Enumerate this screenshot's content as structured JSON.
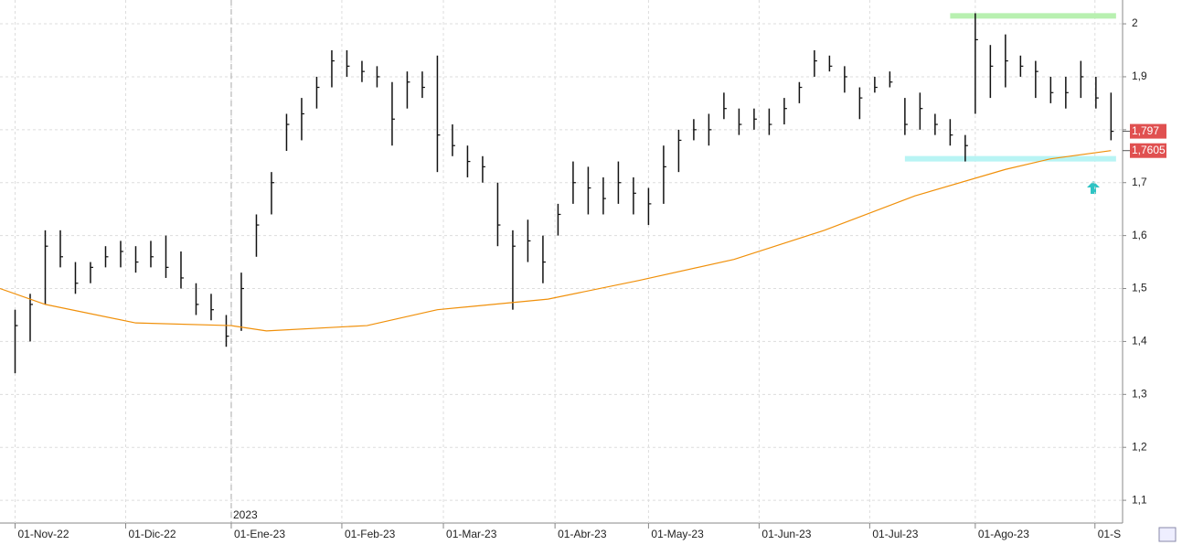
{
  "chart_data": {
    "type": "ohlc",
    "x": [
      0,
      3,
      6,
      9,
      12,
      15,
      18,
      21,
      24,
      27,
      30,
      33,
      36,
      39,
      42,
      45,
      48,
      51,
      54,
      57,
      60,
      63,
      66,
      69,
      72,
      75,
      78,
      81,
      84,
      87,
      90,
      93,
      96,
      99,
      102,
      105,
      108,
      111,
      114,
      117,
      120,
      123,
      126,
      129,
      132,
      135,
      138,
      141,
      144,
      147,
      150,
      153,
      156,
      159,
      162,
      165,
      168,
      171,
      174,
      177,
      180,
      183,
      186,
      189,
      191,
      194,
      197,
      200,
      203,
      206,
      209,
      212,
      215,
      218
    ],
    "high": [
      1.46,
      1.49,
      1.61,
      1.61,
      1.55,
      1.55,
      1.58,
      1.59,
      1.58,
      1.59,
      1.6,
      1.57,
      1.51,
      1.49,
      1.45,
      1.53,
      1.64,
      1.72,
      1.83,
      1.86,
      1.9,
      1.95,
      1.95,
      1.93,
      1.92,
      1.89,
      1.91,
      1.91,
      1.94,
      1.81,
      1.77,
      1.75,
      1.7,
      1.61,
      1.63,
      1.6,
      1.66,
      1.74,
      1.73,
      1.71,
      1.74,
      1.71,
      1.69,
      1.77,
      1.8,
      1.82,
      1.83,
      1.87,
      1.84,
      1.84,
      1.84,
      1.86,
      1.89,
      1.95,
      1.94,
      1.92,
      1.88,
      1.9,
      1.91,
      1.86,
      1.87,
      1.83,
      1.82,
      1.79,
      2.02,
      1.96,
      1.98,
      1.94,
      1.93,
      1.9,
      1.9,
      1.93,
      1.9,
      1.87
    ],
    "low": [
      1.34,
      1.4,
      1.47,
      1.54,
      1.49,
      1.51,
      1.54,
      1.54,
      1.53,
      1.54,
      1.52,
      1.5,
      1.45,
      1.44,
      1.39,
      1.42,
      1.56,
      1.64,
      1.76,
      1.78,
      1.84,
      1.88,
      1.9,
      1.89,
      1.88,
      1.77,
      1.84,
      1.86,
      1.72,
      1.75,
      1.71,
      1.7,
      1.58,
      1.46,
      1.55,
      1.51,
      1.6,
      1.66,
      1.64,
      1.64,
      1.66,
      1.64,
      1.62,
      1.66,
      1.72,
      1.78,
      1.77,
      1.82,
      1.79,
      1.8,
      1.79,
      1.81,
      1.85,
      1.9,
      1.91,
      1.87,
      1.82,
      1.87,
      1.88,
      1.79,
      1.8,
      1.79,
      1.77,
      1.74,
      1.83,
      1.86,
      1.88,
      1.9,
      1.86,
      1.85,
      1.84,
      1.86,
      1.84,
      1.78
    ],
    "close": [
      1.43,
      1.47,
      1.58,
      1.56,
      1.51,
      1.54,
      1.56,
      1.57,
      1.55,
      1.56,
      1.54,
      1.52,
      1.47,
      1.46,
      1.41,
      1.5,
      1.62,
      1.7,
      1.81,
      1.83,
      1.88,
      1.93,
      1.92,
      1.91,
      1.9,
      1.82,
      1.89,
      1.88,
      1.79,
      1.77,
      1.74,
      1.73,
      1.62,
      1.58,
      1.59,
      1.55,
      1.64,
      1.7,
      1.69,
      1.67,
      1.7,
      1.68,
      1.66,
      1.73,
      1.78,
      1.8,
      1.8,
      1.84,
      1.81,
      1.82,
      1.81,
      1.84,
      1.88,
      1.93,
      1.92,
      1.9,
      1.86,
      1.88,
      1.89,
      1.81,
      1.84,
      1.81,
      1.79,
      1.77,
      1.97,
      1.92,
      1.93,
      1.92,
      1.91,
      1.87,
      1.87,
      1.9,
      1.86,
      1.797
    ],
    "bar_color": "#111111",
    "moving_average": {
      "color": "#f0900a",
      "x": [
        -3,
        6,
        24,
        43,
        50,
        70,
        84,
        106,
        124,
        143,
        161,
        179,
        197,
        206,
        218
      ],
      "values": [
        1.5,
        1.47,
        1.435,
        1.43,
        1.42,
        1.43,
        1.46,
        1.48,
        1.515,
        1.555,
        1.61,
        1.675,
        1.725,
        1.745,
        1.7605
      ]
    },
    "bands": [
      {
        "color": "#b8f0b0",
        "y": 2.015,
        "x": [
          186,
          219
        ]
      },
      {
        "color": "#b8f4f4",
        "y": 1.745,
        "x": [
          177,
          219
        ]
      }
    ],
    "price_labels": [
      {
        "value": 1.797,
        "label": "1,797",
        "color": "#e05050"
      },
      {
        "value": 1.7605,
        "label": "1,7605",
        "color": "#e05050"
      }
    ],
    "xlim": [
      -3,
      220.3
    ],
    "ylim": [
      1.057,
      2.045
    ],
    "yticks": [
      {
        "value": 1.1,
        "label": "1,1"
      },
      {
        "value": 1.2,
        "label": "1,2"
      },
      {
        "value": 1.3,
        "label": "1,3"
      },
      {
        "value": 1.4,
        "label": "1,4"
      },
      {
        "value": 1.5,
        "label": "1,5"
      },
      {
        "value": 1.6,
        "label": "1,6"
      },
      {
        "value": 1.7,
        "label": "1,7"
      },
      {
        "value": 1.8,
        "label": "1,8"
      },
      {
        "value": 1.9,
        "label": "1,9"
      },
      2
    ],
    "xticks": [
      {
        "value": 0,
        "label": "01-Nov-22"
      },
      {
        "value": 22,
        "label": "01-Dic-22"
      },
      {
        "value": 43,
        "label": "01-Ene-23"
      },
      {
        "value": 65,
        "label": "01-Feb-23"
      },
      {
        "value": 85.2,
        "label": "01-Mar-23"
      },
      {
        "value": 107.4,
        "label": "01-Abr-23"
      },
      {
        "value": 126,
        "label": "01-May-23"
      },
      {
        "value": 148,
        "label": "01-Jun-23"
      },
      {
        "value": 170,
        "label": "01-Jul-23"
      },
      {
        "value": 191,
        "label": "01-Ago-23"
      },
      {
        "value": 214.8,
        "label": "01-S"
      }
    ],
    "year_marker": {
      "value": 43,
      "label": "2023"
    },
    "grid": true
  }
}
